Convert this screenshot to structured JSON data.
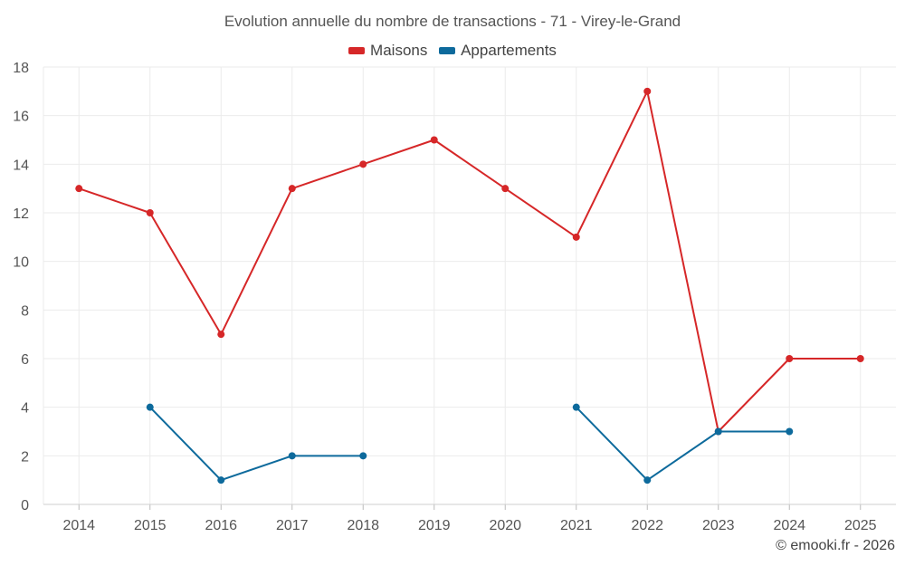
{
  "chart_data": {
    "type": "line",
    "title": "Evolution annuelle du nombre de transactions - 71 - Virey-le-Grand",
    "x": [
      "2014",
      "2015",
      "2016",
      "2017",
      "2018",
      "2019",
      "2020",
      "2021",
      "2022",
      "2023",
      "2024",
      "2025"
    ],
    "series": [
      {
        "name": "Maisons",
        "color": "#d62728",
        "values": [
          13,
          12,
          7,
          13,
          14,
          15,
          13,
          11,
          17,
          3,
          6,
          6
        ]
      },
      {
        "name": "Appartements",
        "color": "#0d6a9c",
        "values": [
          null,
          4,
          1,
          2,
          2,
          null,
          null,
          4,
          1,
          3,
          3,
          null
        ]
      }
    ],
    "ylim": [
      0,
      18
    ],
    "yticks": [
      0,
      2,
      4,
      6,
      8,
      10,
      12,
      14,
      16,
      18
    ],
    "grid": true,
    "legend_position": "top-center",
    "xlabel": "",
    "ylabel": ""
  },
  "credit": "© emooki.fr - 2026"
}
